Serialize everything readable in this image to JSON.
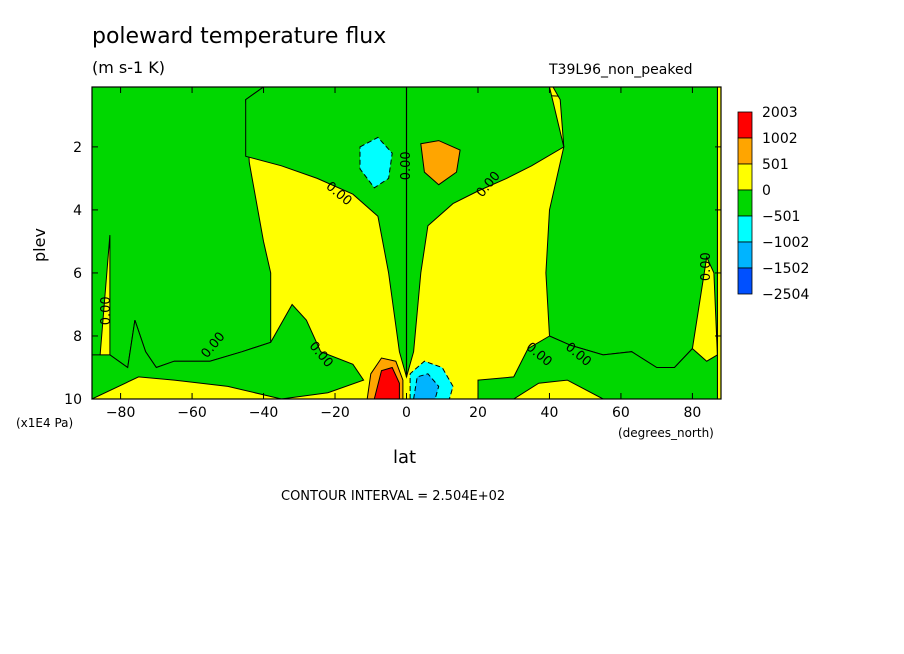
{
  "chart_data": {
    "type": "heatmap",
    "title": "poleward temperature flux",
    "units": "(m s-1 K)",
    "run_label": "T39L96_non_peaked",
    "xlabel": "lat",
    "x_units": "(degrees_north)",
    "ylabel": "plev",
    "y_units": "(x1E4 Pa)",
    "x_ticks": [
      -80,
      -60,
      -40,
      -20,
      0,
      20,
      40,
      60,
      80
    ],
    "x_tick_labels": [
      "−80",
      "−60",
      "−40",
      "−20",
      "0",
      "20",
      "40",
      "60",
      "80"
    ],
    "xlim": [
      -88,
      88
    ],
    "y_ticks": [
      2,
      4,
      6,
      8,
      10
    ],
    "y_tick_labels": [
      "2",
      "4",
      "6",
      "8",
      "10"
    ],
    "ylim": [
      10,
      0.1
    ],
    "contour_interval_text": "CONTOUR INTERVAL = 2.504E+02",
    "contour_labels": [
      {
        "text": "0.00",
        "lat": -84,
        "plev": 7.2,
        "rotate": -90
      },
      {
        "text": "0.00",
        "lat": -54,
        "plev": 8.3,
        "rotate": -50
      },
      {
        "text": "0.00",
        "lat": -24,
        "plev": 8.6,
        "rotate": 50
      },
      {
        "text": "0.00",
        "lat": -19,
        "plev": 3.5,
        "rotate": 40
      },
      {
        "text": "0.00",
        "lat": 0,
        "plev": 2.6,
        "rotate": -90
      },
      {
        "text": "0.00",
        "lat": 23,
        "plev": 3.2,
        "rotate": -50
      },
      {
        "text": "0.00",
        "lat": 37,
        "plev": 8.6,
        "rotate": 40
      },
      {
        "text": "0.00",
        "lat": 48,
        "plev": 8.6,
        "rotate": 40
      },
      {
        "text": "0.00",
        "lat": 84,
        "plev": 5.8,
        "rotate": -90
      }
    ],
    "legend": {
      "placement": "right",
      "levels": [
        {
          "label": "2003",
          "color": "#ff0000"
        },
        {
          "label": "1002",
          "color": "#ffa500"
        },
        {
          "label": "501",
          "color": "#ffff00"
        },
        {
          "label": "0",
          "color": "#00d700"
        },
        {
          "label": "−501",
          "color": "#00ffff"
        },
        {
          "label": "−1002",
          "color": "#00b4ff"
        },
        {
          "label": "−1502",
          "color": "#0080ff"
        },
        {
          "label": "−2504",
          "color": ""
        }
      ]
    },
    "fields": [
      {
        "name": "positive-flux",
        "color": "#ffff00",
        "value": 1,
        "outline": [
          [
            -86,
            0.4
          ],
          [
            -80,
            0.3
          ],
          [
            -60,
            0.7
          ],
          [
            -40,
            0.4
          ],
          [
            -20,
            0.3
          ],
          [
            -8,
            0.5
          ],
          [
            -3,
            0.3
          ],
          [
            3,
            0.3
          ],
          [
            10,
            0.4
          ],
          [
            25,
            0.3
          ],
          [
            45,
            0.4
          ],
          [
            60,
            0.6
          ],
          [
            80,
            0.3
          ],
          [
            87,
            0.1
          ],
          [
            87,
            10
          ],
          [
            -88,
            10
          ],
          [
            -88,
            0.3
          ]
        ]
      },
      {
        "name": "negative-band-sh",
        "color": "#00d700",
        "value": -1,
        "outline": [
          [
            -88,
            0.1
          ],
          [
            -40,
            0.1
          ],
          [
            -45,
            0.5
          ],
          [
            -44,
            2.5
          ],
          [
            -40,
            5
          ],
          [
            -38,
            6
          ],
          [
            -38,
            8.2
          ],
          [
            -46,
            8.5
          ],
          [
            -55,
            8.8
          ],
          [
            -65,
            8.8
          ],
          [
            -70,
            9
          ],
          [
            -73,
            8.5
          ],
          [
            -76,
            7.5
          ],
          [
            -78,
            9
          ],
          [
            -83,
            8.6
          ],
          [
            -83,
            4.8
          ],
          [
            -86,
            9
          ],
          [
            -88,
            8.6
          ]
        ]
      },
      {
        "name": "negative-band-nh",
        "color": "#00d700",
        "value": -1,
        "outline": [
          [
            41,
            0.1
          ],
          [
            87,
            0.1
          ],
          [
            87,
            8.6
          ],
          [
            86,
            6
          ],
          [
            84,
            5.5
          ],
          [
            80,
            8.4
          ],
          [
            75,
            9
          ],
          [
            70,
            9
          ],
          [
            63,
            8.5
          ],
          [
            55,
            8.6
          ],
          [
            46,
            8.3
          ],
          [
            40,
            8
          ],
          [
            39,
            6
          ],
          [
            40,
            4
          ],
          [
            44,
            2
          ],
          [
            43,
            0.5
          ]
        ]
      },
      {
        "name": "negative-band-sh-low",
        "color": "#00d700",
        "value": -1,
        "outline": [
          [
            -88,
            8.6
          ],
          [
            -83,
            8.6
          ],
          [
            -78,
            9
          ],
          [
            -76,
            7.5
          ],
          [
            -73,
            8.5
          ],
          [
            -70,
            9
          ],
          [
            -65,
            8.8
          ],
          [
            -55,
            8.8
          ],
          [
            -46,
            8.5
          ],
          [
            -38,
            8.2
          ],
          [
            -32,
            7
          ],
          [
            -28,
            7.5
          ],
          [
            -24,
            8.5
          ],
          [
            -15,
            8.9
          ],
          [
            -12,
            9.4
          ],
          [
            -22,
            9.8
          ],
          [
            -35,
            10
          ],
          [
            -50,
            9.6
          ],
          [
            -65,
            9.4
          ],
          [
            -75,
            9.3
          ],
          [
            -88,
            10
          ]
        ]
      },
      {
        "name": "negative-band-nh-low",
        "color": "#00d700",
        "value": -1,
        "outline": [
          [
            20,
            9.4
          ],
          [
            30,
            9.3
          ],
          [
            34,
            8.4
          ],
          [
            40,
            8
          ],
          [
            46,
            8.3
          ],
          [
            55,
            8.6
          ],
          [
            63,
            8.5
          ],
          [
            70,
            9
          ],
          [
            75,
            9
          ],
          [
            80,
            8.4
          ],
          [
            84,
            8.8
          ],
          [
            87,
            8.6
          ],
          [
            87,
            10
          ],
          [
            55,
            10
          ],
          [
            45,
            9.4
          ],
          [
            37,
            9.5
          ],
          [
            30,
            10
          ],
          [
            20,
            10
          ]
        ]
      },
      {
        "name": "negative-tongue-center",
        "color": "#00d700",
        "value": -1,
        "outline": [
          [
            -40,
            0.1
          ],
          [
            40,
            0.1
          ],
          [
            44,
            2
          ],
          [
            35,
            2.6
          ],
          [
            28,
            3
          ],
          [
            20,
            3.4
          ],
          [
            13,
            3.8
          ],
          [
            6,
            4.5
          ],
          [
            4,
            6
          ],
          [
            2,
            8.5
          ],
          [
            0,
            9.3
          ],
          [
            -2,
            8.5
          ],
          [
            -5,
            6
          ],
          [
            -8,
            4.2
          ],
          [
            -15,
            3.5
          ],
          [
            -25,
            3
          ],
          [
            -35,
            2.6
          ],
          [
            -45,
            2.3
          ],
          [
            -45,
            0.5
          ]
        ]
      },
      {
        "name": "core-negative-upper",
        "color": "#00ffff",
        "value": -2,
        "outline": [
          [
            -13,
            2
          ],
          [
            -8,
            1.7
          ],
          [
            -4,
            2.2
          ],
          [
            -5,
            3
          ],
          [
            -9,
            3.3
          ],
          [
            -13,
            2.7
          ]
        ]
      },
      {
        "name": "core-positive-upper",
        "color": "#ffa500",
        "value": 2,
        "outline": [
          [
            4,
            1.9
          ],
          [
            9,
            1.8
          ],
          [
            15,
            2.1
          ],
          [
            14,
            2.8
          ],
          [
            9,
            3.2
          ],
          [
            5,
            2.8
          ]
        ]
      },
      {
        "name": "core-positive-low",
        "color": "#ffa500",
        "value": 2,
        "outline": [
          [
            -11,
            10
          ],
          [
            -10,
            9.2
          ],
          [
            -7,
            8.7
          ],
          [
            -3,
            8.8
          ],
          [
            -1,
            9.4
          ],
          [
            -1,
            10
          ]
        ]
      },
      {
        "name": "core-positive-max",
        "color": "#ff0000",
        "value": 3,
        "outline": [
          [
            -9,
            10
          ],
          [
            -7,
            9.1
          ],
          [
            -4,
            9
          ],
          [
            -2,
            9.5
          ],
          [
            -2,
            10
          ]
        ]
      },
      {
        "name": "core-negative-low",
        "color": "#00ffff",
        "value": -2,
        "outline": [
          [
            1,
            10
          ],
          [
            1,
            9.2
          ],
          [
            5,
            8.8
          ],
          [
            10,
            9
          ],
          [
            13,
            9.6
          ],
          [
            12,
            10
          ]
        ]
      },
      {
        "name": "core-negative-low-deep",
        "color": "#00b4ff",
        "value": -3,
        "outline": [
          [
            2,
            10
          ],
          [
            3,
            9.3
          ],
          [
            6,
            9.2
          ],
          [
            9,
            9.6
          ],
          [
            8,
            10
          ]
        ]
      }
    ]
  }
}
